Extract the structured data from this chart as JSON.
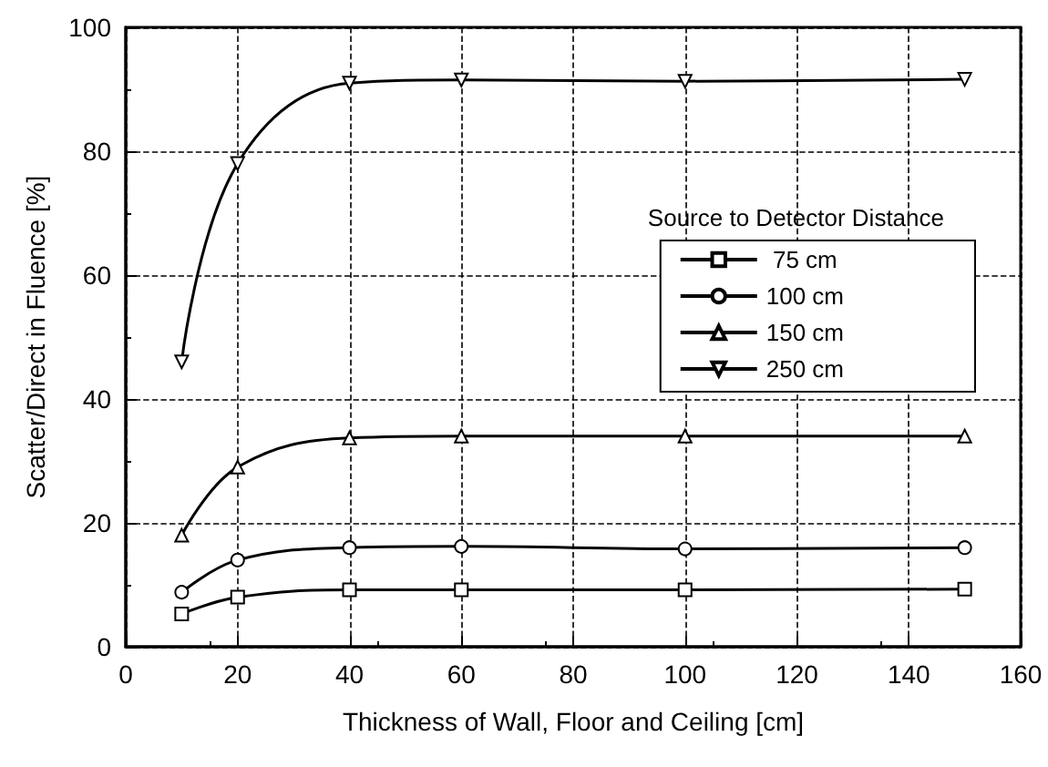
{
  "chart_data": {
    "type": "line",
    "xlabel": "Thickness of Wall, Floor and Ceiling [cm]",
    "ylabel": "Scatter/Direct in Fluence [%]",
    "legend_title": "Source to Detector Distance",
    "x": [
      10,
      20,
      40,
      60,
      100,
      150
    ],
    "series": [
      {
        "name": " 75 cm",
        "color": "#000000",
        "marker": "square",
        "values": [
          5.3,
          8,
          9.2,
          9.2,
          9.2,
          9.3
        ]
      },
      {
        "name": "100 cm",
        "color": "#000000",
        "marker": "circle",
        "values": [
          8.8,
          14,
          16,
          16.2,
          15.8,
          16
        ]
      },
      {
        "name": "150 cm",
        "color": "#000000",
        "marker": "triangle",
        "values": [
          18,
          29,
          33.7,
          34,
          34,
          34
        ]
      },
      {
        "name": "250 cm",
        "color": "#000000",
        "marker": "triangle-down",
        "values": [
          46,
          78,
          91,
          91.5,
          91.3,
          91.6
        ]
      }
    ],
    "xlim": [
      0,
      160
    ],
    "xticks": [
      0,
      20,
      40,
      60,
      80,
      100,
      120,
      140,
      160
    ],
    "ylim": [
      0,
      100
    ],
    "yticks": [
      0,
      20,
      40,
      60,
      80,
      100
    ],
    "grid": true,
    "legend": "right",
    "line_style": "solid"
  }
}
